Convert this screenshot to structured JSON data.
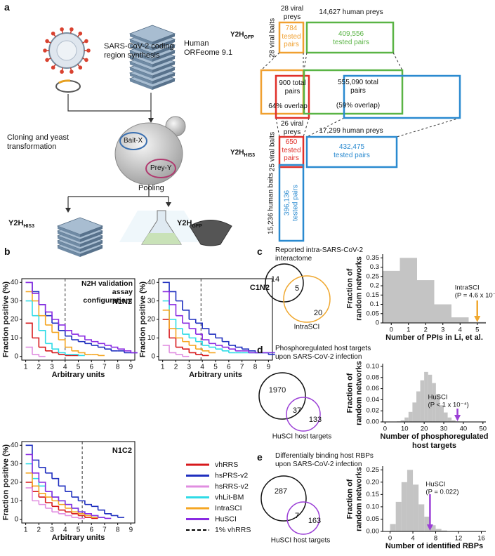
{
  "panel_labels": [
    "a",
    "b",
    "c",
    "d",
    "e"
  ],
  "diagram": {
    "synthesis": "SARS-CoV-2 coding region synthesis",
    "orfeome": "Human ORFeome 9.1",
    "cloning": "Cloning and yeast transformation",
    "bait": "Bait-X",
    "prey": "Prey-Y",
    "pooling": "Pooling",
    "y2h_his3_left": {
      "main": "Y2H",
      "sub": "HIS3"
    },
    "y2h_gfp_left": {
      "main": "Y2H",
      "sub": "GFP"
    },
    "gfp": {
      "main": "Y2H",
      "sub": "GFP",
      "viral_preys": "28 viral preys",
      "human_preys": "14,627 human preys",
      "viral_baits": "28 viral baits",
      "viral_pairs": "784 tested pairs",
      "human_pairs": "409,556 tested pairs"
    },
    "overlap": {
      "viral_total": "900 total pairs",
      "viral_overlap": "64% overlap",
      "human_total": "555,090 total pairs",
      "human_overlap": "(59% overlap)"
    },
    "his3": {
      "main": "Y2H",
      "sub": "HIS3",
      "viral_preys": "26 viral preys",
      "human_preys": "17,299 human preys",
      "viral_baits": "25 viral baits",
      "viral_pairs": "650 tested pairs",
      "human_pairs": "432,475 tested pairs",
      "human_baits": "15,236 human baits",
      "human_bait_pairs": "396,136 tested pairs"
    }
  },
  "chart_data": [
    {
      "type": "step",
      "title": "N1N2",
      "annotation": "N2H validation assay configuration:",
      "xlabel": "Arbitrary units",
      "ylabel": "Fraction positive (%)",
      "x": [
        1,
        1.5,
        2,
        2.5,
        3,
        3.5,
        4,
        4.5,
        5,
        5.5,
        6,
        6.5,
        7,
        7.5,
        8,
        8.5,
        9
      ],
      "xlim": [
        0.7,
        9.3
      ],
      "xticks": [
        1,
        2,
        3,
        4,
        5,
        6,
        7,
        8,
        9
      ],
      "ylim": [
        -2,
        42
      ],
      "yticks": [
        0,
        10,
        20,
        30,
        40
      ],
      "vline": {
        "name": "1% vhRRS",
        "x": 4.0
      },
      "series": [
        {
          "name": "vhRRS",
          "color": "#d7191c",
          "values": [
            18,
            10,
            5,
            3,
            2,
            1,
            0.5,
            0.5,
            null,
            null,
            null,
            null,
            null,
            null,
            null,
            null,
            null
          ]
        },
        {
          "name": "hsPRS-v2",
          "color": "#1f2fbf",
          "values": [
            40,
            35,
            28,
            22,
            18,
            14,
            11,
            9,
            8,
            7,
            6,
            5,
            4,
            3,
            3,
            2,
            2
          ]
        },
        {
          "name": "hsRRS-v2",
          "color": "#e08ee0",
          "values": [
            5,
            1,
            0,
            null,
            null,
            null,
            null,
            null,
            null,
            null,
            null,
            null,
            null,
            null,
            null,
            null,
            null
          ]
        },
        {
          "name": "vhLit-BM",
          "color": "#2fdbe6",
          "values": [
            30,
            22,
            14,
            7,
            4,
            2,
            1,
            1,
            0.5,
            null,
            null,
            null,
            null,
            null,
            null,
            null,
            null
          ]
        },
        {
          "name": "IntraSCI",
          "color": "#f5a623",
          "values": [
            35,
            30,
            22,
            17,
            13,
            9,
            5,
            3,
            2,
            1,
            1,
            0.5,
            null,
            null,
            null,
            null,
            null
          ]
        },
        {
          "name": "HuSCI",
          "color": "#8a2be2",
          "values": [
            40,
            34,
            28,
            24,
            20,
            17,
            14,
            12,
            11,
            9,
            8,
            7,
            6,
            5,
            4,
            3,
            2
          ]
        }
      ]
    },
    {
      "type": "step",
      "title": "C1N2",
      "xlabel": "Arbitrary units",
      "ylabel": "Fraction positive (%)",
      "x": [
        1,
        1.5,
        2,
        2.5,
        3,
        3.5,
        4,
        4.5,
        5,
        5.5,
        6,
        6.5,
        7,
        7.5,
        8,
        8.5,
        9
      ],
      "xlim": [
        0.7,
        9.3
      ],
      "xticks": [
        1,
        2,
        3,
        4,
        5,
        6,
        7,
        8,
        9
      ],
      "ylim": [
        -2,
        42
      ],
      "yticks": [
        0,
        10,
        20,
        30,
        40
      ],
      "vline": {
        "x": 3.9
      },
      "series": [
        {
          "values": [
            20,
            10,
            5,
            4,
            2,
            1,
            0.5,
            null,
            null,
            null,
            null,
            null,
            null,
            null,
            null,
            null,
            null
          ]
        },
        {
          "values": [
            40,
            35,
            30,
            25,
            20,
            18,
            15,
            12,
            10,
            8,
            6,
            5,
            4,
            3,
            2,
            2,
            1
          ]
        },
        {
          "values": [
            6,
            2,
            1,
            0,
            null,
            null,
            null,
            null,
            null,
            null,
            null,
            null,
            null,
            null,
            null,
            null,
            null
          ]
        },
        {
          "values": [
            30,
            20,
            15,
            12,
            10,
            8,
            6,
            5,
            4,
            3,
            2,
            2,
            2,
            2,
            2,
            2,
            2
          ]
        },
        {
          "values": [
            25,
            15,
            10,
            8,
            6,
            4,
            3,
            2,
            null,
            null,
            null,
            null,
            null,
            null,
            null,
            null,
            null
          ]
        },
        {
          "values": [
            35,
            28,
            22,
            18,
            15,
            12,
            9,
            7,
            6,
            5,
            4,
            3,
            3,
            2,
            2,
            2,
            2
          ]
        }
      ]
    },
    {
      "type": "step",
      "title": "N1C2",
      "xlabel": "Arbitrary units",
      "ylabel": "Fraction positive (%)",
      "x": [
        1,
        1.5,
        2,
        2.5,
        3,
        3.5,
        4,
        4.5,
        5,
        5.5,
        6,
        6.5,
        7,
        7.5,
        8,
        8.5,
        9
      ],
      "xlim": [
        0.7,
        9.3
      ],
      "xticks": [
        1,
        2,
        3,
        4,
        5,
        6,
        7,
        8,
        9
      ],
      "ylim": [
        -2,
        42
      ],
      "yticks": [
        0,
        10,
        20,
        30,
        40
      ],
      "vline": {
        "x": 5.3
      },
      "series": [
        {
          "values": [
            20,
            15,
            12,
            9,
            7,
            5,
            4,
            3,
            2,
            1,
            0.5,
            null,
            null,
            null,
            null,
            null,
            null
          ]
        },
        {
          "values": [
            40,
            32,
            28,
            25,
            22,
            18,
            15,
            12,
            10,
            8,
            7,
            5,
            3,
            2,
            1,
            null,
            null
          ]
        },
        {
          "values": [
            17,
            10,
            8,
            6,
            4,
            3,
            2,
            1,
            0.5,
            null,
            null,
            null,
            null,
            null,
            null,
            null,
            null
          ]
        },
        {
          "values": [
            30,
            22,
            18,
            15,
            12,
            10,
            8,
            6,
            4,
            3,
            2,
            1,
            null,
            null,
            null,
            null,
            null
          ]
        },
        {
          "values": [
            25,
            18,
            14,
            12,
            10,
            8,
            6,
            4,
            3,
            2,
            1,
            null,
            null,
            null,
            null,
            null,
            null
          ]
        },
        {
          "values": [
            35,
            25,
            20,
            15,
            12,
            10,
            8,
            6,
            4,
            3,
            2,
            1,
            0.5,
            null,
            null,
            null,
            null
          ]
        }
      ]
    },
    {
      "type": "venn",
      "title": "Reported intra-SARS-CoV-2 interactome",
      "set_label": "IntraSCI",
      "values": [
        14,
        5,
        20
      ],
      "colors": [
        "#111111",
        "#f0a830"
      ]
    },
    {
      "type": "histogram",
      "xlabel": "Number of PPIs in Li, et al.",
      "ylabel": "Fraction of random networks",
      "bins": [
        -0.5,
        0.5,
        1.5,
        2.5,
        3.5,
        4.5,
        5.5
      ],
      "values": [
        0.28,
        0.35,
        0.23,
        0.1,
        0.03,
        0.005
      ],
      "color": "#c4c4c4",
      "xlim": [
        -0.5,
        5.5
      ],
      "xticks": [
        0,
        1,
        2,
        3,
        4,
        5
      ],
      "ylim": [
        0,
        0.37
      ],
      "yticks": [
        0,
        0.05,
        0.1,
        0.15,
        0.2,
        0.25,
        0.3,
        0.35
      ],
      "annotation": {
        "x": 5,
        "text": [
          "IntraSCI",
          "(P = 4.6 x 10⁻³)"
        ],
        "color": "#f0a830"
      }
    },
    {
      "type": "venn",
      "title": "Phosphoregulated host targets upon SARS-CoV-2 infection",
      "set_label": "HuSCI host targets",
      "values": [
        1970,
        37,
        133
      ],
      "colors": [
        "#111111",
        "#9b3fd6"
      ]
    },
    {
      "type": "histogram",
      "xlabel": "Number of phosphoregulated host targets",
      "ylabel": "Fraction of random networks",
      "bins": [
        6,
        8,
        10,
        12,
        14,
        16,
        18,
        20,
        22,
        24,
        26,
        28,
        30,
        32,
        34,
        36,
        38
      ],
      "values": [
        0.001,
        0.003,
        0.008,
        0.018,
        0.035,
        0.055,
        0.075,
        0.09,
        0.085,
        0.07,
        0.05,
        0.03,
        0.017,
        0.008,
        0.003,
        0.001
      ],
      "color": "#c4c4c4",
      "xlim": [
        -1.2,
        51.5
      ],
      "xticks": [
        0,
        10,
        20,
        30,
        40,
        50
      ],
      "ylim": [
        0,
        0.105
      ],
      "yticks": [
        {
          "value": 0,
          "label": "0.00"
        },
        {
          "value": 0.02,
          "label": "0.02"
        },
        {
          "value": 0.04,
          "label": "0.04"
        },
        {
          "value": 0.06,
          "label": "0.06"
        },
        {
          "value": 0.08,
          "label": "0.08"
        },
        {
          "value": 0.1,
          "label": "0.10"
        }
      ],
      "annotation": {
        "x": 37,
        "text": [
          "HuSCI",
          "(P < 1 x 10⁻⁴)"
        ],
        "color": "#9b3fd6"
      }
    },
    {
      "type": "venn",
      "title": "Differentially binding host RBPs upon SARS-CoV-2 infection",
      "set_label": "HuSCI host targets",
      "values": [
        287,
        7,
        163
      ],
      "colors": [
        "#111111",
        "#9b3fd6"
      ]
    },
    {
      "type": "histogram",
      "xlabel": "Number of identified RBPs",
      "ylabel": "Fraction of random networks",
      "bins": [
        0,
        1,
        2,
        3,
        4,
        5,
        6,
        7,
        8,
        9,
        10,
        11
      ],
      "values": [
        0.03,
        0.12,
        0.2,
        0.25,
        0.19,
        0.11,
        0.06,
        0.025,
        0.01,
        0.004,
        0.001
      ],
      "color": "#c4c4c4",
      "xlim": [
        -1.3,
        16.8
      ],
      "xticks": [
        0,
        4,
        8,
        12,
        16
      ],
      "ylim": [
        0,
        0.265
      ],
      "yticks": [
        {
          "value": 0,
          "label": "0.00"
        },
        0.05,
        {
          "value": 0.1,
          "label": "0.10"
        },
        0.15,
        {
          "value": 0.2,
          "label": "0.20"
        },
        0.25
      ],
      "annotation": {
        "x": 7,
        "text": [
          "HuSCI",
          "(P = 0.022)"
        ],
        "color": "#9b3fd6"
      }
    }
  ]
}
